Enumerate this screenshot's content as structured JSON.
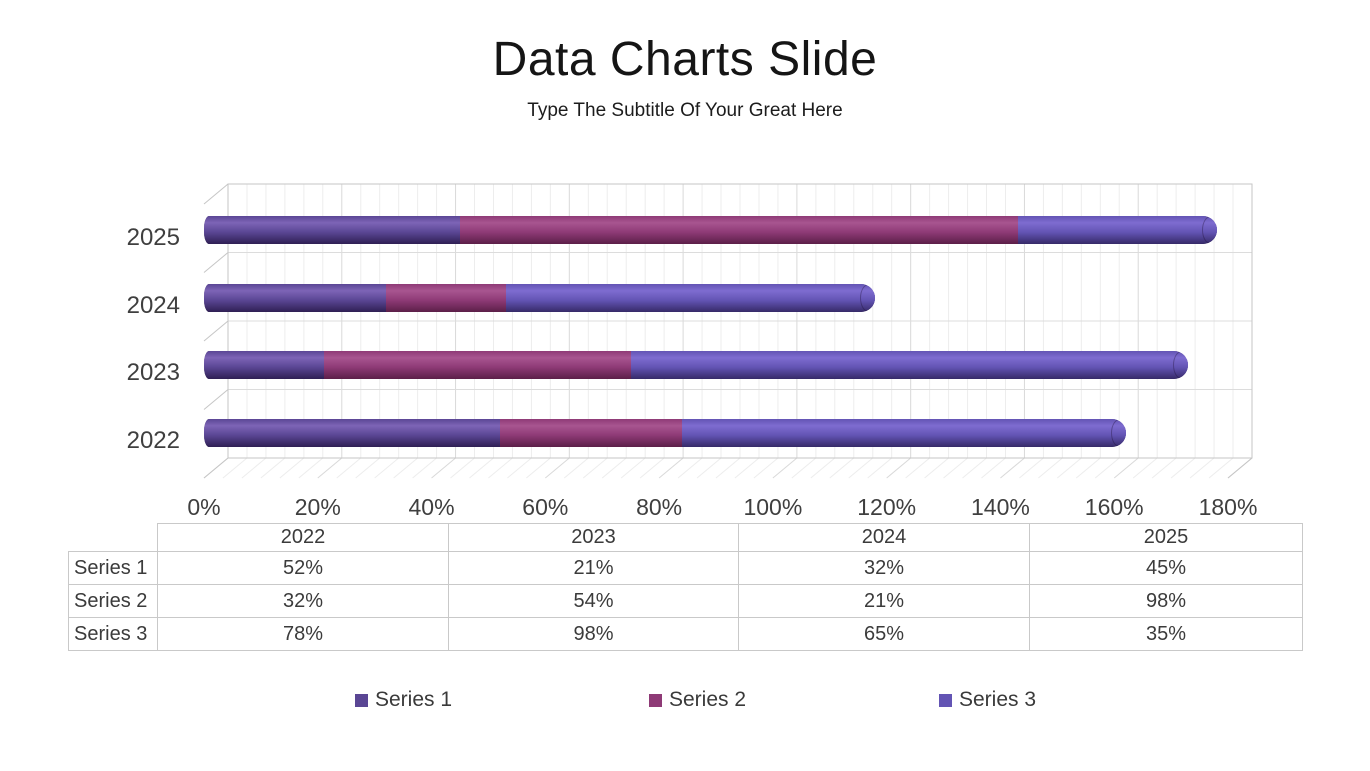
{
  "title": "Data Charts Slide",
  "subtitle": "Type The Subtitle Of Your Great Here",
  "chart_data": {
    "type": "bar",
    "variant": "horizontal-stacked-3d-cylinder",
    "title": "",
    "xlabel": "",
    "ylabel": "",
    "categories": [
      "2022",
      "2023",
      "2024",
      "2025"
    ],
    "series": [
      {
        "name": "Series 1",
        "values": [
          52,
          21,
          32,
          45
        ],
        "color": "#5a4694",
        "color_light": "#7d64b6",
        "color_dark": "#2f1f54"
      },
      {
        "name": "Series 2",
        "values": [
          32,
          54,
          21,
          98
        ],
        "color": "#8e3a76",
        "color_light": "#a85590",
        "color_dark": "#5c1f48"
      },
      {
        "name": "Series 3",
        "values": [
          78,
          98,
          65,
          35
        ],
        "color": "#6354b4",
        "color_light": "#7e6cd0",
        "color_dark": "#362a68"
      }
    ],
    "x_axis": {
      "min": 0,
      "max": 180,
      "major_step": 20,
      "minor_per_major": 6,
      "tick_labels": [
        "0%",
        "20%",
        "40%",
        "60%",
        "80%",
        "100%",
        "120%",
        "140%",
        "160%",
        "180%"
      ]
    },
    "value_suffix": "%",
    "grid": true,
    "legend_position": "bottom",
    "table": {
      "corner_label": ""
    },
    "colors": {
      "grid_minor": "#ededed",
      "grid_major": "#d9d9d9",
      "wall_border": "#c6c6c6",
      "row_line": "#dcdcdc",
      "text": "#3f3f3f",
      "table_border": "#c9c9c9"
    }
  }
}
